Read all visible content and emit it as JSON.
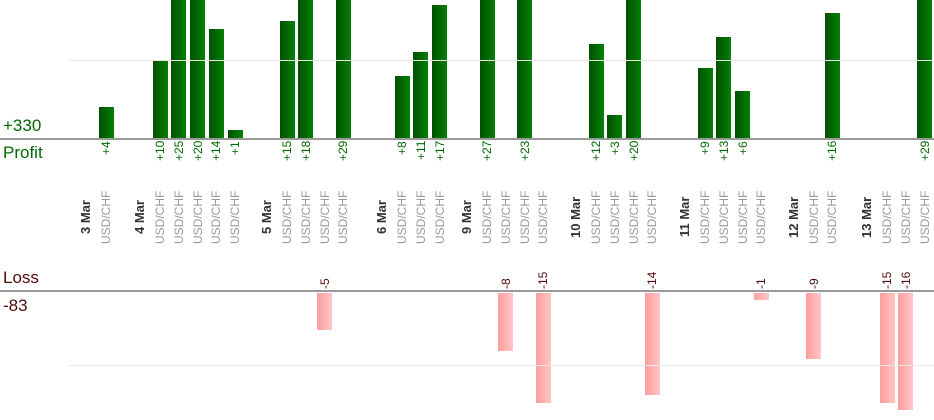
{
  "chart_data": {
    "type": "bar",
    "panels": [
      "profit",
      "loss"
    ],
    "axes": {
      "profit": {
        "name": "Profit",
        "total_label": "+330"
      },
      "loss": {
        "name": "Loss",
        "total_label": "-83"
      }
    },
    "gridlines": {
      "profit_at": 10,
      "loss_at": -10,
      "grid_on": true
    },
    "ylim_profit": [
      0,
      17.7
    ],
    "ylim_loss": [
      0,
      -17.5
    ],
    "groups": [
      {
        "date": "3 Mar",
        "trades": [
          {
            "pair": "USD/CHF",
            "value": 4,
            "label": "+4"
          }
        ]
      },
      {
        "date": "4 Mar",
        "trades": [
          {
            "pair": "USD/CHF",
            "value": 10,
            "label": "+10"
          },
          {
            "pair": "USD/CHF",
            "value": 25,
            "label": "+25"
          },
          {
            "pair": "USD/CHF",
            "value": 20,
            "label": "+20"
          },
          {
            "pair": "USD/CHF",
            "value": 14,
            "label": "+14"
          },
          {
            "pair": "USD/CHF",
            "value": 1,
            "label": "+1"
          }
        ]
      },
      {
        "date": "5 Mar",
        "trades": [
          {
            "pair": "USD/CHF",
            "value": 15,
            "label": "+15"
          },
          {
            "pair": "USD/CHF",
            "value": 18,
            "label": "+18"
          },
          {
            "pair": "USD/CHF",
            "value": -5,
            "label": "-5"
          },
          {
            "pair": "USD/CHF",
            "value": 29,
            "label": "+29"
          }
        ]
      },
      {
        "date": "6 Mar",
        "trades": [
          {
            "pair": "USD/CHF",
            "value": 8,
            "label": "+8"
          },
          {
            "pair": "USD/CHF",
            "value": 11,
            "label": "+11"
          },
          {
            "pair": "USD/CHF",
            "value": 17,
            "label": "+17"
          }
        ]
      },
      {
        "date": "9 Mar",
        "trades": [
          {
            "pair": "USD/CHF",
            "value": 27,
            "label": "+27"
          },
          {
            "pair": "USD/CHF",
            "value": -8,
            "label": "-8"
          },
          {
            "pair": "USD/CHF",
            "value": 23,
            "label": "+23"
          },
          {
            "pair": "USD/CHF",
            "value": -15,
            "label": "-15"
          }
        ]
      },
      {
        "date": "10 Mar",
        "trades": [
          {
            "pair": "USD/CHF",
            "value": 12,
            "label": "+12"
          },
          {
            "pair": "USD/CHF",
            "value": 3,
            "label": "+3"
          },
          {
            "pair": "USD/CHF",
            "value": 20,
            "label": "+20"
          },
          {
            "pair": "USD/CHF",
            "value": -14,
            "label": "-14"
          }
        ]
      },
      {
        "date": "11 Mar",
        "trades": [
          {
            "pair": "USD/CHF",
            "value": 9,
            "label": "+9"
          },
          {
            "pair": "USD/CHF",
            "value": 13,
            "label": "+13"
          },
          {
            "pair": "USD/CHF",
            "value": 6,
            "label": "+6"
          },
          {
            "pair": "USD/CHF",
            "value": -1,
            "label": "-1"
          }
        ]
      },
      {
        "date": "12 Mar",
        "trades": [
          {
            "pair": "USD/CHF",
            "value": -9,
            "label": "-9"
          },
          {
            "pair": "USD/CHF",
            "value": 16,
            "label": "+16"
          }
        ]
      },
      {
        "date": "13 Mar",
        "trades": [
          {
            "pair": "USD/CHF",
            "value": -15,
            "label": "-15"
          },
          {
            "pair": "USD/CHF",
            "value": -16,
            "label": "-16"
          },
          {
            "pair": "USD/CHF",
            "value": 29,
            "label": "+29"
          }
        ]
      }
    ],
    "colors": {
      "background": "#ffffff",
      "profit_bar_dark": "#015001",
      "profit_bar_light": "#028102",
      "loss_bar_dark": "#ff9d9d",
      "loss_bar_light": "#ffc6c6",
      "profit_text": "#006a00",
      "loss_text": "#4f0a0a",
      "date_text": "#333333",
      "pair_text": "#999999",
      "axis_line": "#999999",
      "gridline": "#e9e9e9"
    }
  }
}
